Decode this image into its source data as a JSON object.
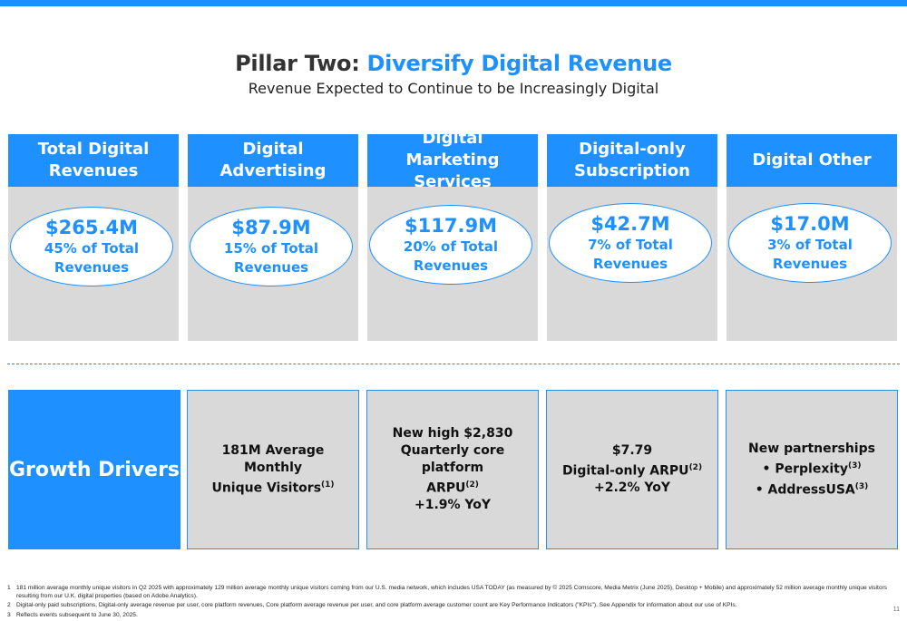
{
  "header": {
    "title_prefix": "Pillar Two: ",
    "title_accent": "Diversify Digital Revenue",
    "subtitle": "Revenue Expected to Continue to be Increasingly Digital"
  },
  "columns": [
    {
      "label": "Total Digital Revenues",
      "amount": "$265.4M",
      "percent_line1": "45% of Total",
      "percent_line2": "Revenues"
    },
    {
      "label": "Digital Advertising",
      "amount": "$87.9M",
      "percent_line1": "15% of Total",
      "percent_line2": "Revenues"
    },
    {
      "label": "Digital Marketing Services",
      "amount": "$117.9M",
      "percent_line1": "20% of Total",
      "percent_line2": "Revenues"
    },
    {
      "label": "Digital-only Subscription",
      "amount": "$42.7M",
      "percent_line1": "7% of Total",
      "percent_line2": "Revenues"
    },
    {
      "label": "Digital Other",
      "amount": "$17.0M",
      "percent_line1": "3% of Total",
      "percent_line2": "Revenues"
    }
  ],
  "growth": {
    "label": "Growth Drivers",
    "advertising": {
      "line1": "181M Average Monthly",
      "line2": "Unique Visitors",
      "sup": "(1)"
    },
    "marketing": {
      "line1": "New high $2,830",
      "line2": "Quarterly core platform",
      "line3": "ARPU",
      "sup": "(2)",
      "line4": "+1.9% YoY"
    },
    "subscription": {
      "line1": "$7.79",
      "line2": "Digital-only ARPU",
      "sup": "(2)",
      "line3": "+2.2% YoY"
    },
    "other": {
      "line1": "New partnerships",
      "item1": "•  Perplexity",
      "sup1": "(3)",
      "item2": "•  AddressUSA",
      "sup2": "(3)"
    }
  },
  "footnotes": [
    {
      "num": "1",
      "text": "181 million average monthly unique visitors in Q2 2025 with approximately 129 million average monthly unique visitors coming from our U.S. media network, which includes USA TODAY (as measured by © 2025 Comscore, Media Metrix (June 2025), Desktop + Mobile) and approximately 52 million average monthly unique visitors resulting from our U.K. digital properties (based on Adobe Analytics)."
    },
    {
      "num": "2",
      "text": "Digital-only paid subscriptions, Digital-only average revenue per user, core platform revenues, Core platform average revenue per user, and core platform average customer count are Key Performance Indicators (\"KPIs\"). See Appendix for information about our use of KPIs."
    },
    {
      "num": "3",
      "text": "Reflects events subsequent to June 30, 2025."
    }
  ],
  "page_number": "11",
  "colors": {
    "accent": "#1e90ff",
    "panel": "#d9d9d9"
  }
}
